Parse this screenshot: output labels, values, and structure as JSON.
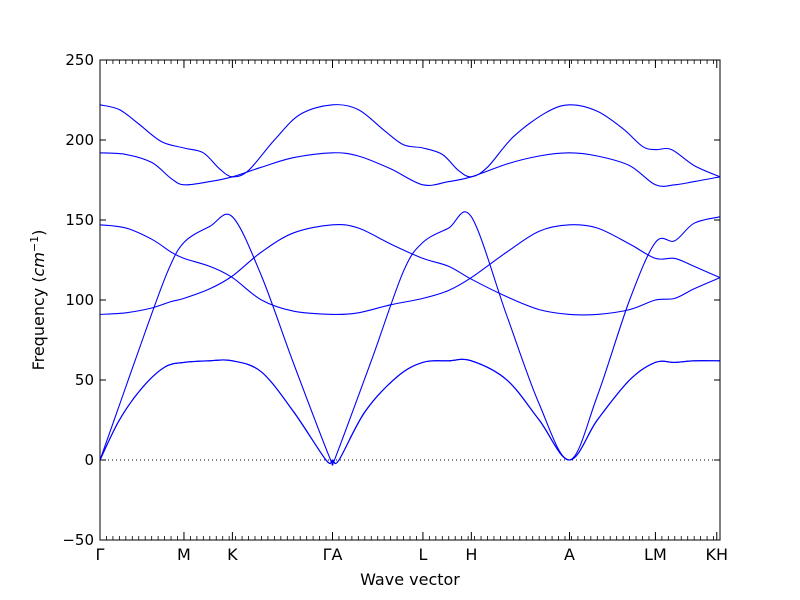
{
  "chart_data": {
    "type": "line",
    "title": "",
    "xlabel": "Wave vector",
    "ylabel_text": "Frequency (",
    "ylabel_unit": "cm",
    "ylabel_exp": "−1",
    "ylabel_close": ")",
    "ylim": [
      -50,
      250
    ],
    "yticks": [
      -50,
      0,
      50,
      100,
      150,
      200,
      250
    ],
    "zero_line": true,
    "line_color": "#0000ff",
    "path_length": 9.6,
    "high_symmetry_points": [
      {
        "label": "Γ",
        "pos": 0.0
      },
      {
        "label": "M",
        "pos": 1.3
      },
      {
        "label": "K",
        "pos": 2.05
      },
      {
        "label": "ΓA",
        "pos": 3.6
      },
      {
        "label": "L",
        "pos": 5.0
      },
      {
        "label": "H",
        "pos": 5.75
      },
      {
        "label": "A",
        "pos": 7.27
      },
      {
        "label": "LM",
        "pos": 8.6
      },
      {
        "label": "KH",
        "pos": 9.55
      }
    ],
    "series": [
      {
        "x": [
          0.0,
          0.3,
          0.65,
          1.0,
          1.3,
          1.7,
          2.05,
          2.5,
          3.0,
          3.5,
          3.6,
          3.7,
          4.1,
          4.6,
          5.0,
          5.4,
          5.75,
          6.3,
          6.8,
          7.27,
          7.7,
          8.2,
          8.6,
          8.9,
          9.2,
          9.6
        ],
        "values": [
          0,
          25,
          45,
          58,
          61,
          62,
          62,
          55,
          30,
          0,
          0,
          0,
          30,
          52,
          61,
          62,
          62,
          50,
          25,
          0,
          25,
          50,
          61,
          61,
          62,
          62
        ]
      },
      {
        "x": [
          0.0,
          0.3,
          0.65,
          1.0,
          1.3,
          1.7,
          2.05,
          2.5,
          3.0,
          3.5,
          3.6,
          3.7,
          4.1,
          4.6,
          5.0,
          5.4,
          5.75,
          6.3,
          6.8,
          7.27,
          7.7,
          8.2,
          8.6,
          8.9,
          9.2,
          9.6
        ],
        "values": [
          0,
          25,
          45,
          58,
          61,
          62,
          62,
          55,
          30,
          0,
          0,
          0,
          30,
          52,
          61,
          62,
          62,
          50,
          25,
          0,
          25,
          50,
          61,
          61,
          62,
          62
        ]
      },
      {
        "x": [
          0.0,
          0.35,
          0.7,
          1.05,
          1.3,
          1.7,
          2.05,
          2.5,
          3.0,
          3.55,
          3.6,
          3.65,
          4.2,
          4.7,
          5.0,
          5.4,
          5.75,
          6.3,
          6.8,
          7.27,
          7.7,
          8.2,
          8.6,
          8.9,
          9.2,
          9.6
        ],
        "values": [
          0,
          40,
          80,
          118,
          136,
          146,
          152,
          115,
          60,
          2,
          0,
          2,
          62,
          118,
          136,
          145,
          152,
          90,
          35,
          0,
          40,
          100,
          136,
          137,
          148,
          152
        ]
      },
      {
        "x": [
          0.0,
          0.4,
          0.8,
          1.1,
          1.3,
          1.7,
          2.05,
          2.5,
          3.0,
          3.6,
          4.0,
          4.5,
          5.0,
          5.4,
          5.75,
          6.3,
          6.8,
          7.27,
          7.7,
          8.2,
          8.6,
          8.9,
          9.2,
          9.6
        ],
        "values": [
          91,
          92,
          95,
          99,
          101,
          107,
          115,
          130,
          142,
          147,
          145,
          135,
          126,
          121,
          113,
          102,
          94,
          91,
          91,
          94,
          100,
          101,
          107,
          114
        ]
      },
      {
        "x": [
          0.0,
          0.4,
          0.8,
          1.1,
          1.3,
          1.7,
          2.05,
          2.5,
          3.0,
          3.6,
          4.0,
          4.5,
          5.0,
          5.4,
          5.75,
          6.3,
          6.8,
          7.27,
          7.7,
          8.2,
          8.6,
          8.9,
          9.2,
          9.6
        ],
        "values": [
          147,
          145,
          138,
          130,
          126,
          121,
          114,
          100,
          93,
          91,
          92,
          97,
          101,
          106,
          114,
          130,
          143,
          147,
          145,
          135,
          126,
          126,
          121,
          114
        ]
      },
      {
        "x": [
          0.0,
          0.4,
          0.8,
          1.1,
          1.3,
          1.7,
          2.05,
          2.5,
          3.0,
          3.6,
          4.0,
          4.5,
          5.0,
          5.4,
          5.75,
          6.3,
          6.8,
          7.27,
          7.7,
          8.2,
          8.6,
          8.9,
          9.2,
          9.6
        ],
        "values": [
          192,
          191,
          186,
          176,
          172,
          174,
          177,
          183,
          189,
          192,
          190,
          182,
          172,
          174,
          177,
          185,
          190,
          192,
          190,
          184,
          172,
          172,
          174,
          177
        ]
      },
      {
        "x": [
          0.0,
          0.3,
          0.6,
          0.95,
          1.3,
          1.6,
          1.85,
          2.05,
          2.3,
          2.7,
          3.1,
          3.6,
          4.0,
          4.4,
          4.7,
          5.0,
          5.3,
          5.55,
          5.75,
          6.0,
          6.4,
          6.9,
          7.27,
          7.7,
          8.1,
          8.4,
          8.6,
          8.85,
          9.2,
          9.6
        ],
        "values": [
          222,
          219,
          210,
          199,
          195,
          192,
          182,
          177,
          181,
          200,
          216,
          222,
          219,
          206,
          197,
          195,
          191,
          181,
          177,
          183,
          202,
          217,
          222,
          218,
          207,
          196,
          194,
          194,
          184,
          177
        ]
      }
    ]
  }
}
